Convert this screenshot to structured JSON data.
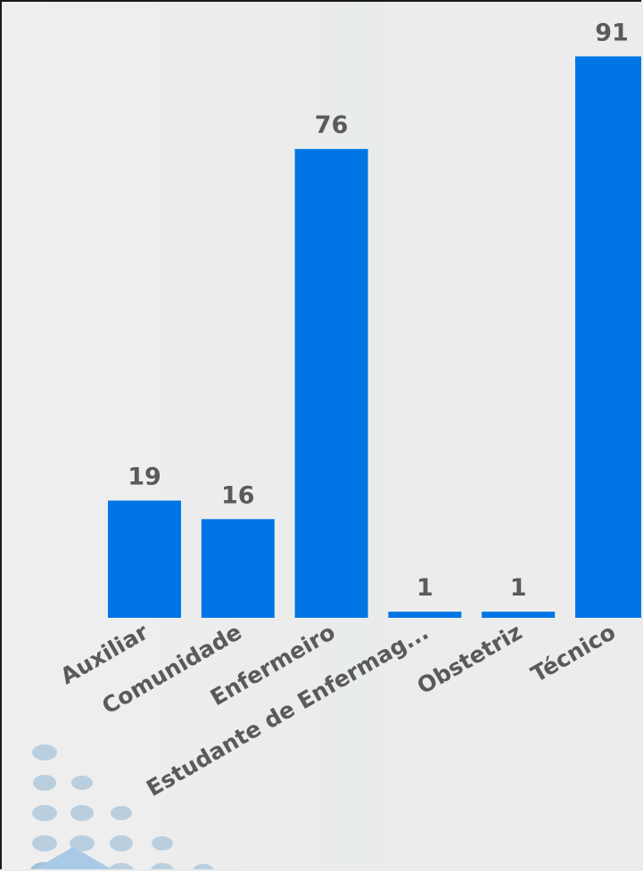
{
  "chart_data": {
    "type": "bar",
    "categories": [
      "Auxiliar",
      "Comunidade",
      "Enfermeiro",
      "Estudante de Enfermag...",
      "Obstetriz",
      "Técnico"
    ],
    "values": [
      19,
      16,
      76,
      1,
      1,
      91
    ],
    "data_labels": [
      "19",
      "16",
      "76",
      "1",
      "1",
      "91"
    ],
    "ylim": [
      0,
      95
    ],
    "grid": false,
    "legend": "none",
    "colors": {
      "bar": "#0076e6",
      "label": "#5a5a5a"
    }
  }
}
